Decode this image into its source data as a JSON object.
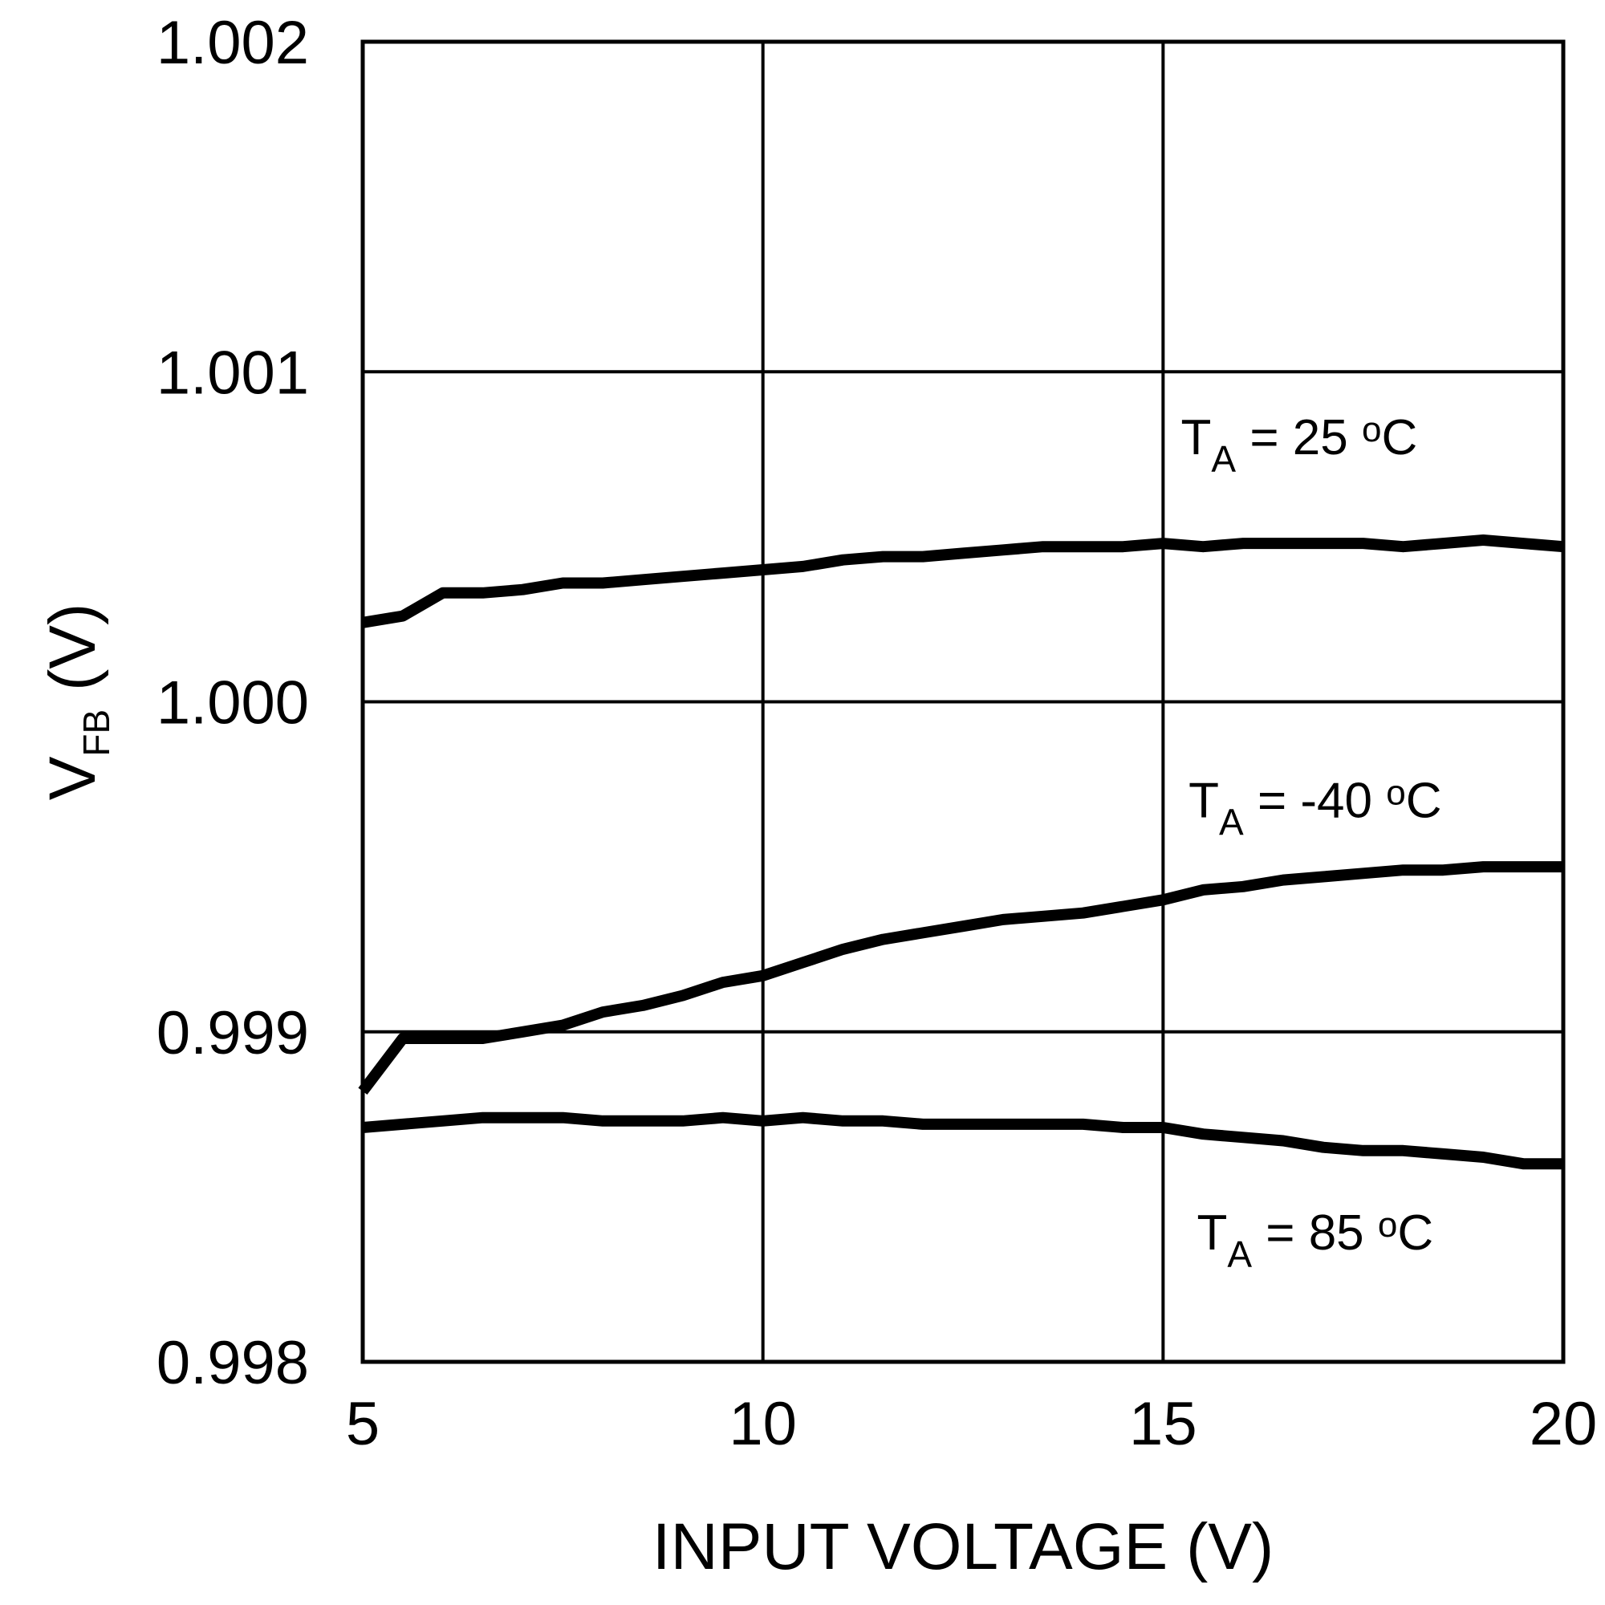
{
  "chart_data": {
    "type": "line",
    "title": "",
    "xlabel": "INPUT VOLTAGE (V)",
    "ylabel": {
      "main": "V",
      "sub": "FB",
      "rest": " (V)"
    },
    "xlim": [
      5,
      20
    ],
    "ylim": [
      0.998,
      1.002
    ],
    "xticks": [
      5,
      10,
      15,
      20
    ],
    "xtick_labels": [
      "5",
      "10",
      "15",
      "20"
    ],
    "yticks": [
      0.998,
      0.999,
      1.0,
      1.001,
      1.002
    ],
    "ytick_labels": [
      "0.998",
      "0.999",
      "1.000",
      "1.001",
      "1.002"
    ],
    "grid": true,
    "series": [
      {
        "name": "T_A = 25 °C",
        "label_parts": {
          "main": "T",
          "sub": "A",
          "mid": " = 25 ",
          "sup": "o",
          "end": "C"
        },
        "x": [
          5,
          5.5,
          6,
          6.5,
          7,
          7.5,
          8,
          8.5,
          9,
          9.5,
          10,
          10.5,
          11,
          11.5,
          12,
          12.5,
          13,
          13.5,
          14,
          14.5,
          15,
          15.5,
          16,
          16.5,
          17,
          17.5,
          18,
          18.5,
          19,
          19.5,
          20
        ],
        "y": [
          1.00024,
          1.00026,
          1.00033,
          1.00033,
          1.00034,
          1.00036,
          1.00036,
          1.00037,
          1.00038,
          1.00039,
          1.0004,
          1.00041,
          1.00043,
          1.00044,
          1.00044,
          1.00045,
          1.00046,
          1.00047,
          1.00047,
          1.00047,
          1.00048,
          1.00047,
          1.00048,
          1.00048,
          1.00048,
          1.00048,
          1.00047,
          1.00048,
          1.00049,
          1.00048,
          1.00047
        ]
      },
      {
        "name": "T_A = -40 °C",
        "label_parts": {
          "main": "T",
          "sub": "A",
          "mid": " = -40 ",
          "sup": "o",
          "end": "C"
        },
        "x": [
          5,
          5.5,
          6,
          6.5,
          7,
          7.5,
          8,
          8.5,
          9,
          9.5,
          10,
          10.5,
          11,
          11.5,
          12,
          12.5,
          13,
          13.5,
          14,
          14.5,
          15,
          15.5,
          16,
          16.5,
          17,
          17.5,
          18,
          18.5,
          19,
          19.5,
          20
        ],
        "y": [
          0.99882,
          0.99898,
          0.99898,
          0.99898,
          0.999,
          0.99902,
          0.99906,
          0.99908,
          0.99911,
          0.99915,
          0.99917,
          0.99921,
          0.99925,
          0.99928,
          0.9993,
          0.99932,
          0.99934,
          0.99935,
          0.99936,
          0.99938,
          0.9994,
          0.99943,
          0.99944,
          0.99946,
          0.99947,
          0.99948,
          0.99949,
          0.99949,
          0.9995,
          0.9995,
          0.9995
        ]
      },
      {
        "name": "T_A = 85 °C",
        "label_parts": {
          "main": "T",
          "sub": "A",
          "mid": " = 85 ",
          "sup": "o",
          "end": "C"
        },
        "x": [
          5,
          5.5,
          6,
          6.5,
          7,
          7.5,
          8,
          8.5,
          9,
          9.5,
          10,
          10.5,
          11,
          11.5,
          12,
          12.5,
          13,
          13.5,
          14,
          14.5,
          15,
          15.5,
          16,
          16.5,
          17,
          17.5,
          18,
          18.5,
          19,
          19.5,
          20
        ],
        "y": [
          0.99871,
          0.99872,
          0.99873,
          0.99874,
          0.99874,
          0.99874,
          0.99873,
          0.99873,
          0.99873,
          0.99874,
          0.99873,
          0.99874,
          0.99873,
          0.99873,
          0.99872,
          0.99872,
          0.99872,
          0.99872,
          0.99872,
          0.99871,
          0.99871,
          0.99869,
          0.99868,
          0.99867,
          0.99865,
          0.99864,
          0.99864,
          0.99863,
          0.99862,
          0.9986,
          0.9986
        ]
      }
    ],
    "series_label_positions": [
      {
        "series": 0,
        "anchor_x": 16.7,
        "anchor_y": 1.00075
      },
      {
        "series": 1,
        "anchor_x": 16.9,
        "anchor_y": 0.99965
      },
      {
        "series": 2,
        "anchor_x": 16.9,
        "anchor_y": 0.99834
      }
    ],
    "colors": {
      "line": "#000000",
      "grid": "#000000",
      "background": "#ffffff"
    }
  }
}
